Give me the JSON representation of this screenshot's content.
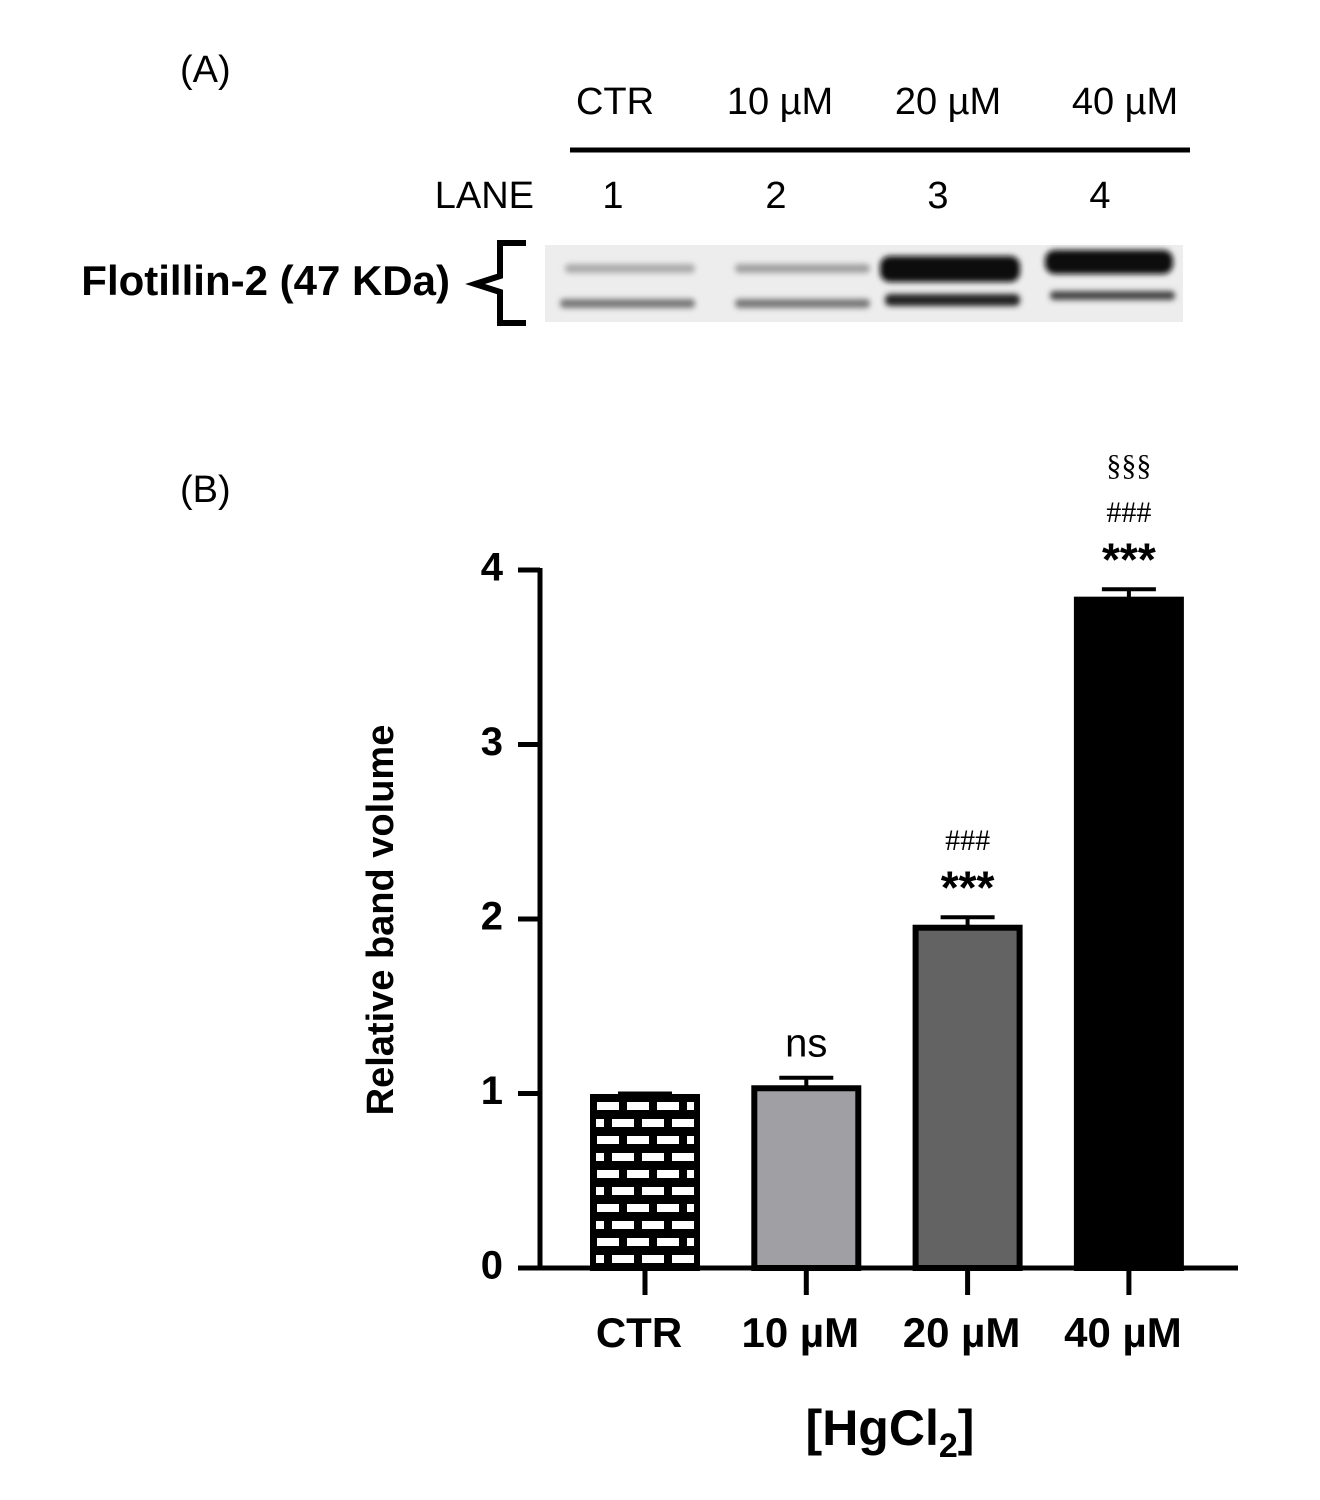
{
  "panel_a": {
    "label": "(A)",
    "conditions": [
      "CTR",
      "10 µM",
      "20 µM",
      "40 µM"
    ],
    "lane_label": "LANE",
    "lanes": [
      "1",
      "2",
      "3",
      "4"
    ],
    "protein": "Flotillin-2 (47 KDa)"
  },
  "chart_data": {
    "type": "bar",
    "panel_label": "(B)",
    "y_label": "Relative band volume",
    "x_label": [
      "[HgCl",
      "2",
      "]"
    ],
    "categories": [
      "CTR",
      "10 µM",
      "20 µM",
      "40 µM"
    ],
    "values": [
      0.98,
      1.03,
      1.95,
      3.83
    ],
    "errors": [
      0.02,
      0.06,
      0.06,
      0.06
    ],
    "colors": [
      "#000000",
      "#a0a0a4",
      "#636363",
      "#000000"
    ],
    "patterns": [
      "brick",
      null,
      null,
      null
    ],
    "annotations": [
      null,
      [
        "ns"
      ],
      [
        "***",
        "###"
      ],
      [
        "***",
        "###",
        "§§§"
      ]
    ],
    "ylim": [
      0,
      4
    ],
    "yticks": [
      0,
      1,
      2,
      3,
      4
    ]
  }
}
